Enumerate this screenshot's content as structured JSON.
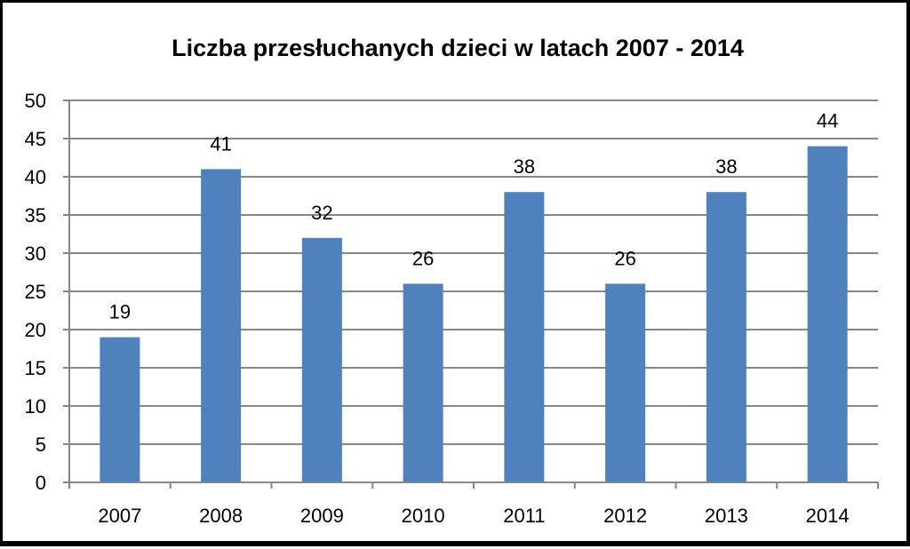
{
  "chart_data": {
    "type": "bar",
    "title": "Liczba przesłuchanych dzieci w latach 2007 - 2014",
    "xlabel": "",
    "ylabel": "",
    "categories": [
      "2007",
      "2008",
      "2009",
      "2010",
      "2011",
      "2012",
      "2013",
      "2014"
    ],
    "values": [
      19,
      41,
      32,
      26,
      38,
      26,
      38,
      44
    ],
    "ylim": [
      0,
      50
    ],
    "yticks": [
      0,
      5,
      10,
      15,
      20,
      25,
      30,
      35,
      40,
      45,
      50
    ],
    "data_labels": true,
    "grid": true,
    "legend": "none",
    "bar_color": "#4f81bd",
    "grid_color": "#868686"
  }
}
